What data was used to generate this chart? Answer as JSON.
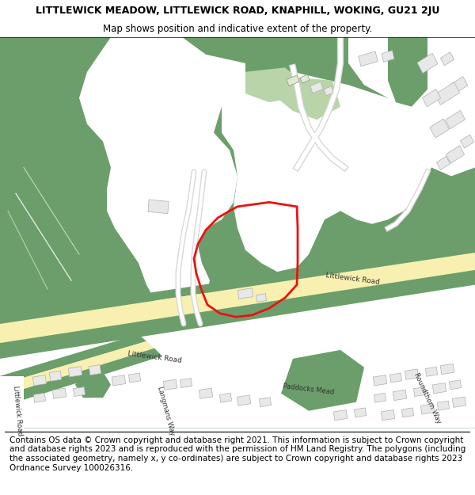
{
  "title_line1": "LITTLEWICK MEADOW, LITTLEWICK ROAD, KNAPHILL, WOKING, GU21 2JU",
  "title_line2": "Map shows position and indicative extent of the property.",
  "footer_text": "Contains OS data © Crown copyright and database right 2021. This information is subject to Crown copyright and database rights 2023 and is reproduced with the permission of HM Land Registry. The polygons (including the associated geometry, namely x, y co-ordinates) are subject to Crown copyright and database rights 2023 Ordnance Survey 100026316.",
  "title_fontsize": 9.0,
  "subtitle_fontsize": 8.5,
  "footer_fontsize": 7.5,
  "map_bg": "#f0f0f0",
  "green_dark": "#6b9e6b",
  "green_light": "#b8d4a8",
  "road_yellow": "#f7f0b0",
  "road_edge_color": "#d4c060",
  "road_gray": "#e0e0e0",
  "plot_color": "#ee1111",
  "plot_linewidth": 2.0,
  "white": "#ffffff",
  "light_gray": "#d8d8d8",
  "building_edge": "#b0b0b0",
  "building_face": "#e8e8e8"
}
